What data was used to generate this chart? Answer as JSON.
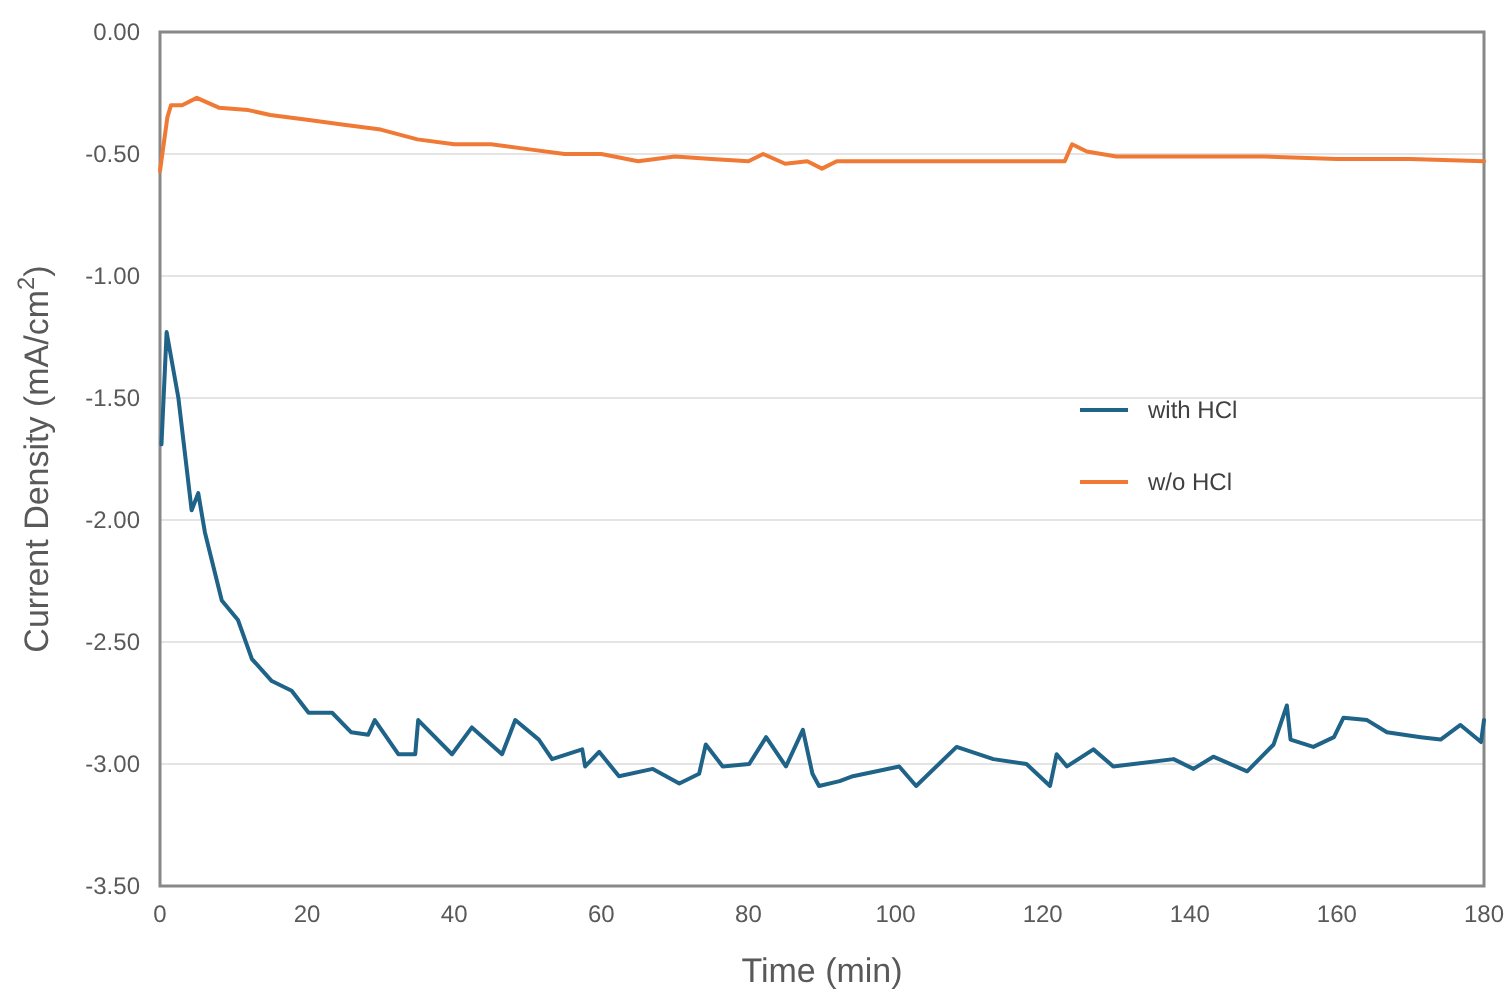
{
  "chart_data": {
    "type": "line",
    "xlabel": "Time (min)",
    "ylabel": "Current Density (mA/cm$^{2}$)",
    "xlim": [
      0,
      180
    ],
    "ylim": [
      -3.5,
      0
    ],
    "xticks": [
      0,
      20,
      40,
      60,
      80,
      100,
      120,
      140,
      160,
      180
    ],
    "yticks": [
      {
        "value": 0,
        "label": "0.00"
      },
      {
        "value": -0.5,
        "label": "-0.50"
      },
      {
        "value": -1,
        "label": "-1.00"
      },
      {
        "value": -1.5,
        "label": "-1.50"
      },
      {
        "value": -2,
        "label": "-2.00"
      },
      {
        "value": -2.5,
        "label": "-2.50"
      },
      {
        "value": -3,
        "label": "-3.00"
      },
      {
        "value": -3.5,
        "label": "-3.50"
      }
    ],
    "grid": "y",
    "legend": "right",
    "marker": "none",
    "line_style": "solid",
    "series": [
      {
        "name": "with HCl",
        "color": "#1f6488",
        "x": [
          0.2,
          0.9,
          2.5,
          4.3,
          5.2,
          6.1,
          7,
          8.4,
          10.6,
          12.5,
          15.2,
          17.9,
          20.2,
          23.4,
          26,
          28.3,
          29.2,
          32.4,
          34.7,
          35.1,
          39.7,
          42.4,
          46.5,
          48.3,
          51.5,
          53.3,
          57.4,
          57.8,
          59.7,
          62.4,
          67,
          70.6,
          73.3,
          74.2,
          76.5,
          80.1,
          82.4,
          85.1,
          87.4,
          88.7,
          89.6,
          92.4,
          94.2,
          100.5,
          102.8,
          108.3,
          113.3,
          117.8,
          121,
          121.9,
          123.3,
          126.9,
          129.6,
          137.8,
          140.5,
          143.2,
          147.8,
          151.4,
          153.2,
          153.7,
          156.8,
          159.6,
          160.9,
          164.1,
          166.8,
          171.4,
          174.1,
          176.8,
          179.6,
          180
        ],
        "values": [
          -1.69,
          -1.23,
          -1.5,
          -1.96,
          -1.89,
          -2.05,
          -2.16,
          -2.33,
          -2.41,
          -2.57,
          -2.66,
          -2.7,
          -2.79,
          -2.79,
          -2.87,
          -2.88,
          -2.82,
          -2.96,
          -2.96,
          -2.82,
          -2.96,
          -2.85,
          -2.96,
          -2.82,
          -2.9,
          -2.98,
          -2.94,
          -3.01,
          -2.95,
          -3.05,
          -3.02,
          -3.08,
          -3.04,
          -2.92,
          -3.01,
          -3,
          -2.89,
          -3.01,
          -2.86,
          -3.04,
          -3.09,
          -3.07,
          -3.05,
          -3.01,
          -3.09,
          -2.93,
          -2.98,
          -3,
          -3.09,
          -2.96,
          -3.01,
          -2.94,
          -3.01,
          -2.98,
          -3.02,
          -2.97,
          -3.03,
          -2.92,
          -2.76,
          -2.9,
          -2.93,
          -2.89,
          -2.81,
          -2.82,
          -2.87,
          -2.89,
          -2.9,
          -2.84,
          -2.91,
          -2.82
        ]
      },
      {
        "name": "w/o HCl",
        "color": "#f07a35",
        "x": [
          0,
          1,
          1.5,
          3,
          5,
          8,
          12,
          15,
          20,
          25,
          30,
          35,
          40,
          45,
          50,
          55,
          60,
          65,
          70,
          75,
          80,
          82,
          85,
          88,
          90,
          92,
          100,
          110,
          120,
          123,
          124,
          126,
          128,
          130,
          140,
          150,
          160,
          170,
          180
        ],
        "values": [
          -0.57,
          -0.35,
          -0.3,
          -0.3,
          -0.27,
          -0.31,
          -0.32,
          -0.34,
          -0.36,
          -0.38,
          -0.4,
          -0.44,
          -0.46,
          -0.46,
          -0.48,
          -0.5,
          -0.5,
          -0.53,
          -0.51,
          -0.52,
          -0.53,
          -0.5,
          -0.54,
          -0.53,
          -0.56,
          -0.53,
          -0.53,
          -0.53,
          -0.53,
          -0.53,
          -0.46,
          -0.49,
          -0.5,
          -0.51,
          -0.51,
          -0.51,
          -0.52,
          -0.52,
          -0.53
        ]
      }
    ]
  }
}
